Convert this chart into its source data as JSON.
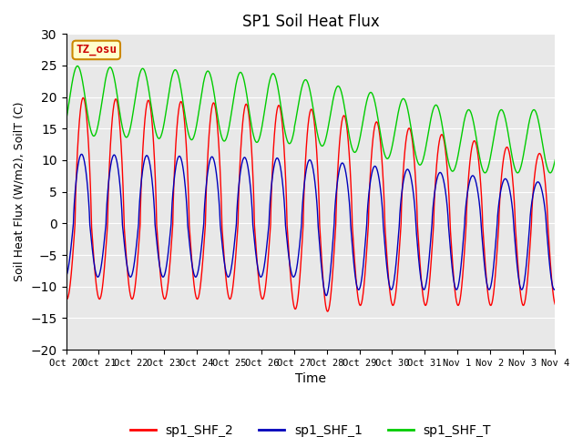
{
  "title": "SP1 Soil Heat Flux",
  "xlabel": "Time",
  "ylabel": "Soil Heat Flux (W/m2), SoilT (C)",
  "ylim": [
    -20,
    30
  ],
  "yticks": [
    -20,
    -15,
    -10,
    -5,
    0,
    5,
    10,
    15,
    20,
    25,
    30
  ],
  "x_tick_labels": [
    "Oct 20",
    "Oct 21",
    "Oct 22",
    "Oct 23",
    "Oct 24",
    "Oct 25",
    "Oct 26",
    "Oct 27",
    "Oct 28",
    "Oct 29",
    "Oct 30",
    "Oct 31",
    "Nov 1",
    "Nov 2",
    "Nov 3",
    "Nov 4"
  ],
  "colors": {
    "shf2": "#ff0000",
    "shf1": "#0000bb",
    "shfT": "#00cc00",
    "bg": "#e8e8e8",
    "annotation_bg": "#ffffcc",
    "annotation_border": "#cc8800",
    "fig_bg": "#ffffff",
    "grid": "#ffffff"
  },
  "legend_labels": [
    "sp1_SHF_2",
    "sp1_SHF_1",
    "sp1_SHF_T"
  ],
  "annotation_text": "TZ_osu"
}
